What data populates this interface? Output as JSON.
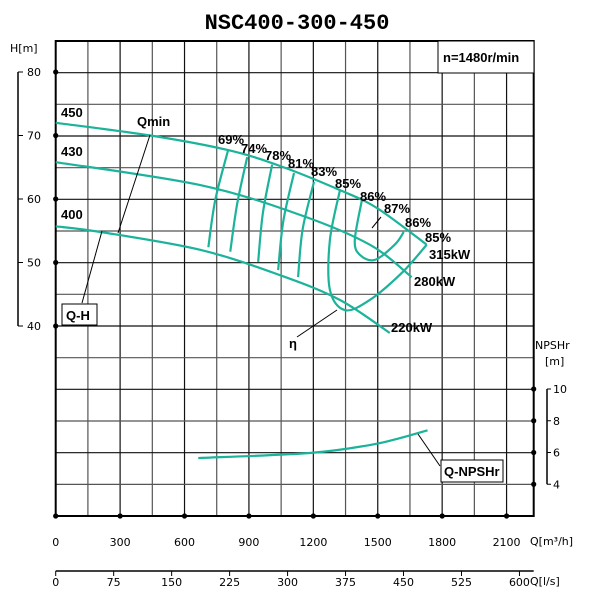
{
  "chart_data": {
    "type": "line",
    "title": "NSC400-300-450",
    "speed_label": "n=1480r/min",
    "colors": {
      "curve": "#1bb39a",
      "grid": "#000000"
    },
    "grid": true,
    "x_axis": {
      "label": "Q[m³/h]",
      "range": [
        0,
        2250
      ],
      "ticks": [
        0,
        300,
        600,
        900,
        1200,
        1500,
        1800,
        2100
      ]
    },
    "x2_axis": {
      "label": "Q[l/s]",
      "ticks": [
        0,
        75,
        150,
        225,
        300,
        375,
        450,
        525,
        600
      ]
    },
    "y_axis": {
      "label": "H[m]",
      "range": [
        40,
        80
      ],
      "ticks": [
        40,
        50,
        60,
        70,
        80
      ]
    },
    "y2_axis": {
      "label_line1": "NPSHr",
      "label_line2": "[m]",
      "range": [
        4,
        10
      ],
      "ticks": [
        4,
        6,
        8,
        10
      ]
    },
    "head_curves": [
      {
        "name": "450",
        "points": [
          [
            0,
            72
          ],
          [
            441,
            70
          ],
          [
            803,
            67.7
          ],
          [
            1045,
            65.2
          ],
          [
            1324,
            61.4
          ],
          [
            1500,
            58.5
          ],
          [
            1728,
            52.8
          ]
        ]
      },
      {
        "name": "430",
        "points": [
          [
            0,
            65.8
          ],
          [
            673,
            62.2
          ],
          [
            1138,
            57.5
          ],
          [
            1463,
            52.8
          ],
          [
            1658,
            47.7
          ]
        ]
      },
      {
        "name": "400",
        "points": [
          [
            0,
            55.7
          ],
          [
            209,
            54.8
          ],
          [
            673,
            52
          ],
          [
            1045,
            48
          ],
          [
            1324,
            44.1
          ],
          [
            1556,
            38.9
          ]
        ]
      }
    ],
    "power_labels": [
      "315kW",
      "280kW",
      "220kW"
    ],
    "efficiency_curves": [
      {
        "name": "69%",
        "points": [
          [
            803,
            67.7
          ],
          [
            743,
            59.8
          ],
          [
            711,
            52.4
          ]
        ]
      },
      {
        "name": "74%",
        "points": [
          [
            892,
            66.6
          ],
          [
            845,
            59.2
          ],
          [
            813,
            51.7
          ]
        ]
      },
      {
        "name": "78%",
        "points": [
          [
            1008,
            65.4
          ],
          [
            965,
            57.8
          ],
          [
            943,
            50.1
          ]
        ]
      },
      {
        "name": "81%",
        "points": [
          [
            1110,
            64.1
          ],
          [
            1060,
            56.5
          ],
          [
            1036,
            48.8
          ]
        ]
      },
      {
        "name": "83%",
        "points": [
          [
            1203,
            62.7
          ],
          [
            1150,
            55.2
          ],
          [
            1129,
            47.7
          ]
        ]
      },
      {
        "name": "85%",
        "points": [
          [
            1324,
            61.4
          ],
          [
            1277,
            53.5
          ],
          [
            1277,
            45.7
          ],
          [
            1347,
            42.5
          ],
          [
            1463,
            44.1
          ],
          [
            1616,
            48.5
          ],
          [
            1728,
            52.8
          ]
        ]
      },
      {
        "name": "86%",
        "points": [
          [
            1426,
            59.8
          ],
          [
            1393,
            53.5
          ],
          [
            1417,
            51.2
          ],
          [
            1486,
            50.4
          ],
          [
            1579,
            52.8
          ],
          [
            1621,
            54.8
          ]
        ]
      }
    ],
    "efficiency_labels": [
      "69%",
      "74%",
      "78%",
      "81%",
      "83%",
      "85%",
      "86%",
      "87%",
      "86%",
      "85%"
    ],
    "npsh_curve": {
      "name": "Q-NPSHr",
      "points": [
        [
          664,
          5.65
        ],
        [
          1184,
          5.97
        ],
        [
          1463,
          6.47
        ],
        [
          1602,
          6.9
        ],
        [
          1732,
          7.4
        ]
      ]
    },
    "annotations": {
      "qmin": "Qmin",
      "qh": "Q-H",
      "eta": "η",
      "qnpsh": "Q-NPSHr"
    }
  }
}
